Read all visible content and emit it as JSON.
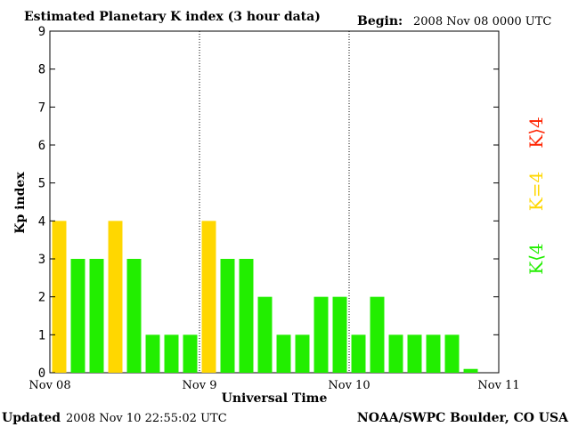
{
  "header": {
    "title": "Estimated Planetary K index (3 hour data)",
    "begin_label": "Begin:",
    "begin_value": "2008 Nov 08 0000 UTC"
  },
  "footer": {
    "updated_label": "Updated",
    "updated_value": "2008 Nov 10 22:55:02 UTC",
    "source": "NOAA/SWPC Boulder, CO USA"
  },
  "legend": [
    {
      "label": "K⟨4",
      "color": "#22ee00"
    },
    {
      "label": "K=4",
      "color": "#ffd700"
    },
    {
      "label": "K⟩4",
      "color": "#ff2200"
    }
  ],
  "chart_data": {
    "type": "bar",
    "xlabel": "Universal Time",
    "ylabel": "Kp index",
    "ylim": [
      0,
      9
    ],
    "yticks": [
      0,
      1,
      2,
      3,
      4,
      5,
      6,
      7,
      8,
      9
    ],
    "x_ticks": [
      "Nov 08",
      "Nov 9",
      "Nov 10",
      "Nov 11"
    ],
    "day_dividers": [
      "Nov 9",
      "Nov 10"
    ],
    "interval_hours": 3,
    "values": [
      4,
      3,
      3,
      4,
      3,
      1,
      1,
      1,
      4,
      3,
      3,
      2,
      1,
      1,
      2,
      2,
      1,
      2,
      1,
      1,
      1,
      1,
      0.1
    ],
    "colors": {
      "below_4": "#22ee00",
      "equal_4": "#ffd700",
      "above_4": "#ff2200"
    }
  }
}
